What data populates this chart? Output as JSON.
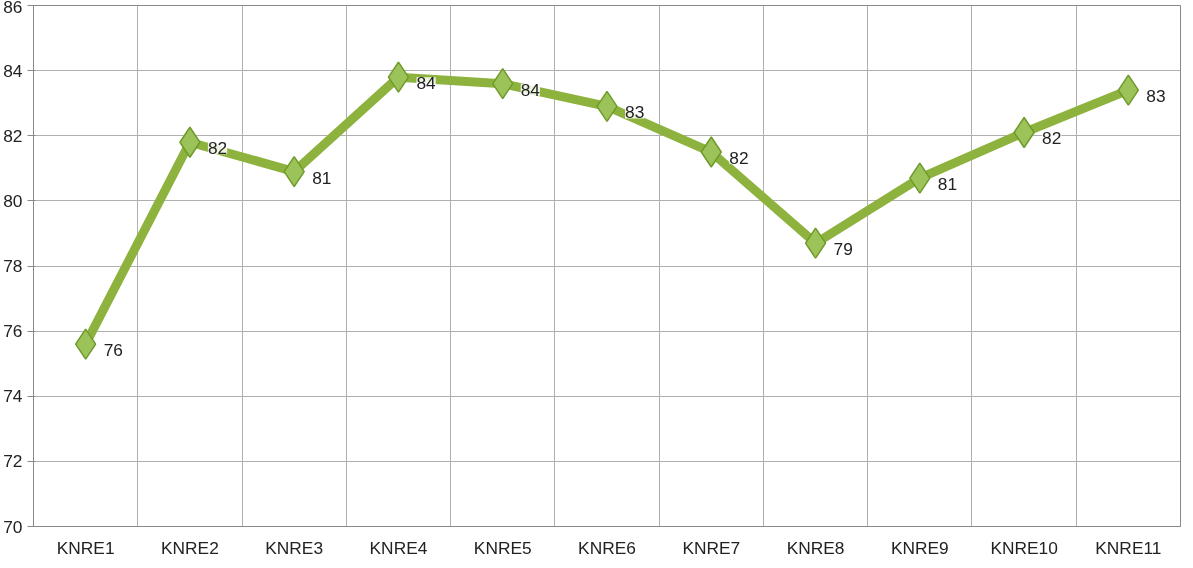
{
  "chart_data": {
    "type": "line",
    "categories": [
      "KNRE1",
      "KNRE2",
      "KNRE3",
      "KNRE4",
      "KNRE5",
      "KNRE6",
      "KNRE7",
      "KNRE8",
      "KNRE9",
      "KNRE10",
      "KNRE11"
    ],
    "series": [
      {
        "color": "#8db33e",
        "values": [
          75.6,
          81.8,
          80.9,
          83.8,
          83.6,
          82.9,
          81.5,
          78.7,
          80.7,
          82.1,
          83.4
        ],
        "value_labels": [
          "76",
          "82",
          "81",
          "84",
          "84",
          "83",
          "82",
          "79",
          "81",
          "82",
          "83"
        ]
      }
    ],
    "ylim": [
      70,
      86
    ],
    "yticks": [
      70,
      72,
      74,
      76,
      78,
      80,
      82,
      84,
      86
    ],
    "grid": true,
    "marker": "diamond",
    "line_style": "solid"
  }
}
